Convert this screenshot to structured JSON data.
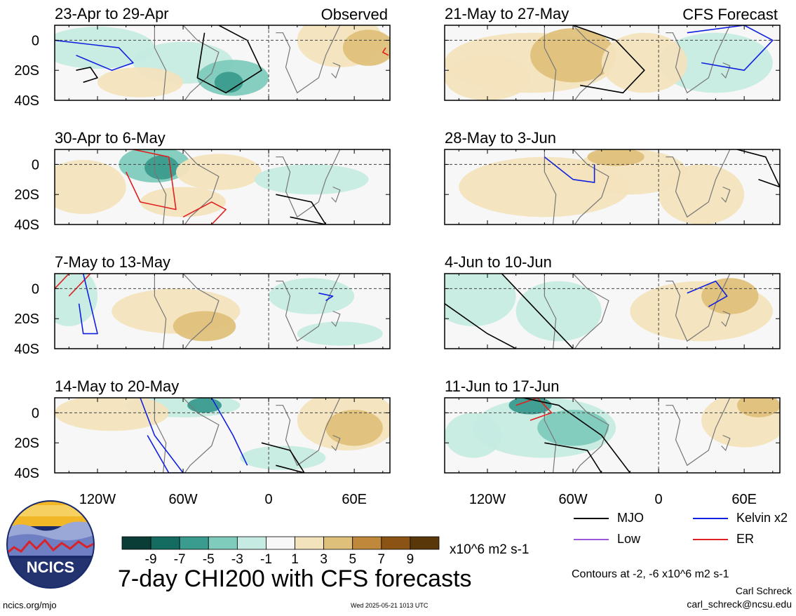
{
  "chart_data": [
    {
      "type": "heatmap",
      "title": "23-Apr to 29-Apr",
      "tag": "Observed",
      "xlim": [
        -150,
        85
      ],
      "ylim": [
        -40,
        10
      ],
      "xticks": [
        "120W",
        "60W",
        "0",
        "60E"
      ],
      "yticks": [
        "0",
        "20S",
        "40S"
      ],
      "contours": [
        "MJO",
        "Kelvin x2",
        "ER"
      ]
    },
    {
      "type": "heatmap",
      "title": "30-Apr to 6-May",
      "xlim": [
        -150,
        85
      ],
      "ylim": [
        -40,
        10
      ],
      "yticks": [
        "0",
        "20S",
        "40S"
      ],
      "contours": [
        "MJO",
        "ER"
      ]
    },
    {
      "type": "heatmap",
      "title": "7-May to 13-May",
      "xlim": [
        -150,
        85
      ],
      "ylim": [
        -40,
        10
      ],
      "yticks": [
        "0",
        "20S",
        "40S"
      ],
      "contours": [
        "MJO",
        "Kelvin x2",
        "ER"
      ]
    },
    {
      "type": "heatmap",
      "title": "14-May to 20-May",
      "xlim": [
        -150,
        85
      ],
      "ylim": [
        -40,
        10
      ],
      "yticks": [
        "0",
        "20S",
        "40S"
      ],
      "contours": [
        "MJO",
        "Kelvin x2"
      ]
    },
    {
      "type": "heatmap",
      "title": "21-May to 27-May",
      "tag": "CFS Forecast",
      "xlim": [
        -150,
        85
      ],
      "ylim": [
        -40,
        10
      ],
      "contours": [
        "MJO",
        "Kelvin x2"
      ]
    },
    {
      "type": "heatmap",
      "title": "28-May to 3-Jun",
      "xlim": [
        -150,
        85
      ],
      "ylim": [
        -40,
        10
      ],
      "contours": [
        "MJO",
        "Kelvin x2"
      ]
    },
    {
      "type": "heatmap",
      "title": "4-Jun to 10-Jun",
      "xlim": [
        -150,
        85
      ],
      "ylim": [
        -40,
        10
      ],
      "contours": [
        "MJO",
        "Kelvin x2"
      ]
    },
    {
      "type": "heatmap",
      "title": "11-Jun to 17-Jun",
      "xlim": [
        -150,
        85
      ],
      "ylim": [
        -40,
        10
      ],
      "contours": [
        "MJO",
        "ER"
      ]
    }
  ],
  "xtick_labels": [
    "120W",
    "60W",
    "0",
    "60E"
  ],
  "ytick_labels": [
    "0",
    "20S",
    "40S"
  ],
  "colorbar": {
    "labels": [
      "-9",
      "-7",
      "-5",
      "-3",
      "-1",
      "1",
      "3",
      "5",
      "7",
      "9"
    ],
    "colors": [
      "#0b3d37",
      "#146b60",
      "#3a9c8e",
      "#7fcbbc",
      "#c6ebe2",
      "#f7f7f7",
      "#f3e3bd",
      "#dfc07b",
      "#c0883a",
      "#8c5414",
      "#5a3709"
    ],
    "units": "x10^6 m2 s-1"
  },
  "legend": [
    {
      "label": "MJO",
      "color": "#000000"
    },
    {
      "label": "Kelvin x2",
      "color": "#1020e0"
    },
    {
      "label": "Low",
      "color": "#9b59d8"
    },
    {
      "label": "ER",
      "color": "#e02020"
    }
  ],
  "title": "7-day CHI200 with CFS forecasts",
  "contour_note": "Contours at -2, -6 x10^6 m2 s-1",
  "author": "Carl Schreck",
  "email": "carl_schreck@ncsu.edu",
  "site": "ncics.org/mjo",
  "timestamp": "Wed 2025-05-21 1013 UTC",
  "logo_text": "NCICS"
}
